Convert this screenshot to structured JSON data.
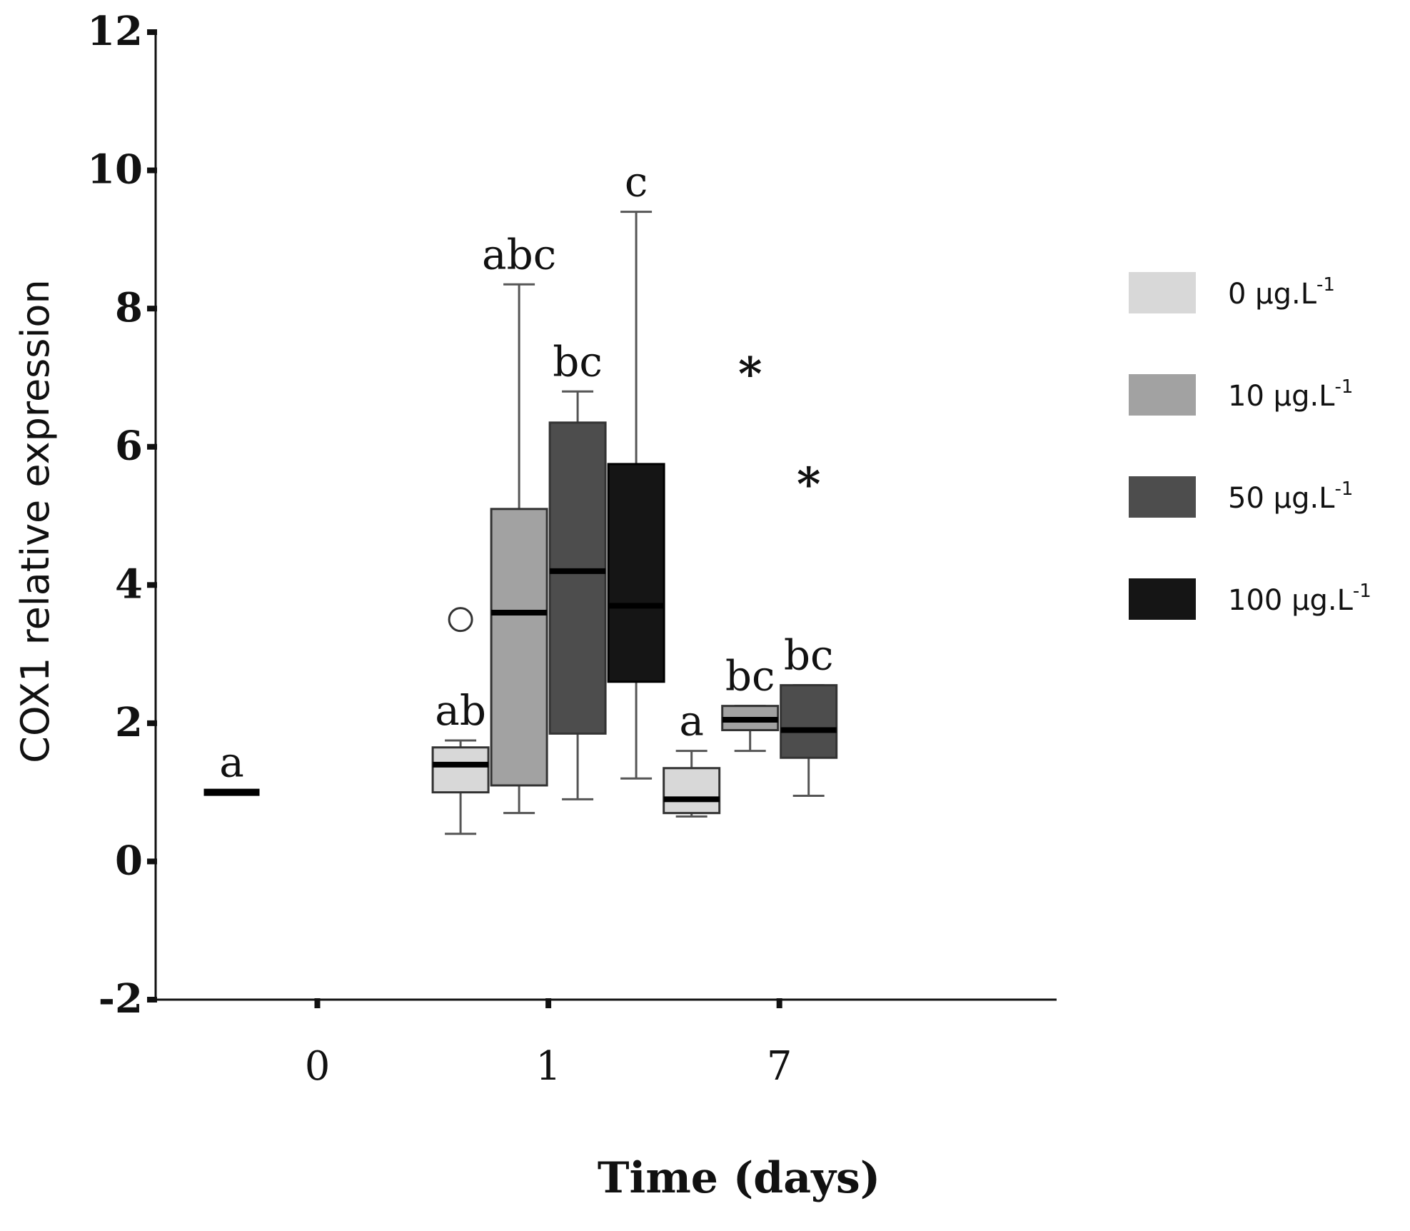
{
  "chart_data": {
    "type": "box",
    "xlabel": "Time (days)",
    "ylabel": "COX1 relative expression",
    "ylim": [
      -2,
      12
    ],
    "yticks": [
      -2,
      0,
      2,
      4,
      6,
      8,
      10,
      12
    ],
    "categories": [
      "0",
      "1",
      "7"
    ],
    "legend_position": "right",
    "series": [
      {
        "name": "0 µg.L",
        "name_sup": "-1",
        "color": "#d8d8d8",
        "boxes": [
          {
            "category": "0",
            "min": 1.0,
            "q1": 1.0,
            "median": 1.0,
            "q3": 1.0,
            "max": 1.0,
            "label": "a",
            "outliers": [],
            "extremes": []
          },
          {
            "category": "1",
            "min": 0.4,
            "q1": 1.0,
            "median": 1.4,
            "q3": 1.65,
            "max": 1.75,
            "label": "ab",
            "outliers": [
              3.5
            ],
            "extremes": []
          },
          {
            "category": "7",
            "min": 0.65,
            "q1": 0.7,
            "median": 0.9,
            "q3": 1.35,
            "max": 1.6,
            "label": "a",
            "outliers": [],
            "extremes": []
          }
        ]
      },
      {
        "name": "10 µg.L",
        "name_sup": "-1",
        "color": "#a2a2a2",
        "boxes": [
          {
            "category": "1",
            "min": 0.7,
            "q1": 1.1,
            "median": 3.6,
            "q3": 5.1,
            "max": 8.35,
            "label": "abc",
            "outliers": [],
            "extremes": []
          },
          {
            "category": "7",
            "min": 1.6,
            "q1": 1.9,
            "median": 2.05,
            "q3": 2.25,
            "max": 2.25,
            "label": "bc",
            "outliers": [],
            "extremes": [
              7.1
            ]
          }
        ]
      },
      {
        "name": "50 µg.L",
        "name_sup": "-1",
        "color": "#4d4d4d",
        "boxes": [
          {
            "category": "1",
            "min": 0.9,
            "q1": 1.85,
            "median": 4.2,
            "q3": 6.35,
            "max": 6.8,
            "label": "bc",
            "outliers": [],
            "extremes": []
          },
          {
            "category": "7",
            "min": 0.95,
            "q1": 1.5,
            "median": 1.9,
            "q3": 2.55,
            "max": 2.55,
            "label": "bc",
            "outliers": [],
            "extremes": [
              5.5
            ]
          }
        ]
      },
      {
        "name": "100 µg.L",
        "name_sup": "-1",
        "color": "#151515",
        "boxes": [
          {
            "category": "1",
            "min": 1.2,
            "q1": 2.6,
            "median": 3.7,
            "q3": 5.75,
            "max": 9.4,
            "label": "c",
            "outliers": [],
            "extremes": []
          }
        ]
      }
    ],
    "extreme_marker": "*"
  }
}
